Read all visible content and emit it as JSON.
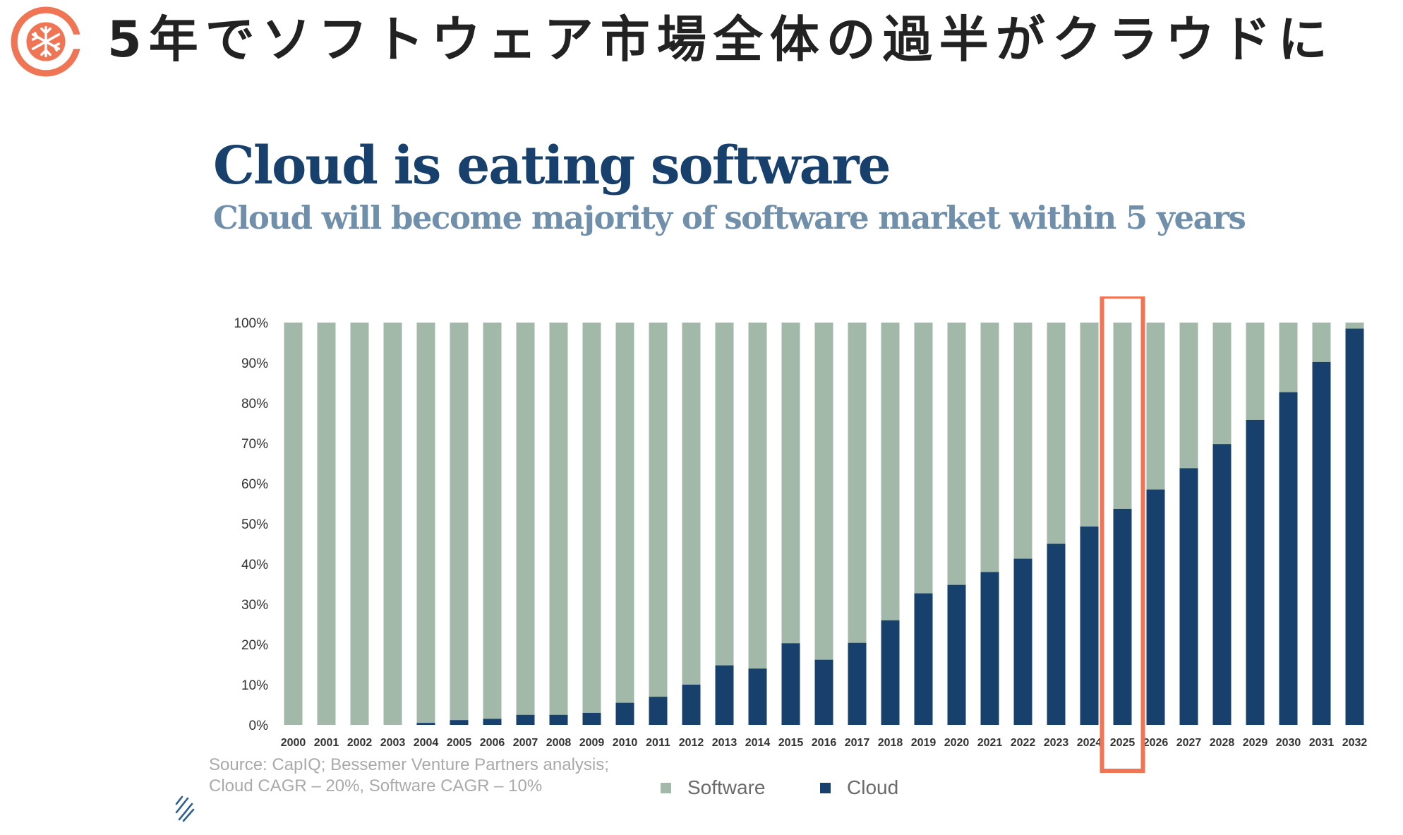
{
  "header": {
    "title": "5年でソフトウェア市場全体の過半がクラウドに",
    "logo_icon": "snowflake-c-logo",
    "accent_color": "#ef7554"
  },
  "chart_header": {
    "title": "Cloud is eating software",
    "subtitle": "Cloud will become majority of software market within 5 years"
  },
  "source": {
    "line1": "Source: CapIQ; Bessemer Venture Partners analysis;",
    "line2": "Cloud CAGR – 20%, Software CAGR – 10%"
  },
  "chart_data": {
    "type": "bar",
    "stacked": true,
    "categories": [
      "2000",
      "2001",
      "2002",
      "2003",
      "2004",
      "2005",
      "2006",
      "2007",
      "2008",
      "2009",
      "2010",
      "2011",
      "2012",
      "2013",
      "2014",
      "2015",
      "2016",
      "2017",
      "2018",
      "2019",
      "2020",
      "2021",
      "2022",
      "2023",
      "2024",
      "2025",
      "2026",
      "2027",
      "2028",
      "2029",
      "2030",
      "2031",
      "2032"
    ],
    "series": [
      {
        "name": "Cloud",
        "color": "#17406d",
        "values": [
          0,
          0,
          0,
          0,
          0.5,
          1.2,
          1.5,
          2.5,
          2.5,
          3,
          5.5,
          7,
          10,
          14.8,
          14,
          20.3,
          16.2,
          20.4,
          26,
          32.7,
          34.8,
          38,
          41.3,
          45,
          49.3,
          53.7,
          58.5,
          63.8,
          69.8,
          75.8,
          82.7,
          90.2,
          98.5
        ]
      },
      {
        "name": "Software",
        "color": "#a2b8a9",
        "values": [
          100,
          100,
          100,
          100,
          99.5,
          98.8,
          98.5,
          97.5,
          97.5,
          97,
          94.5,
          93,
          90,
          85.2,
          86,
          79.7,
          83.8,
          79.6,
          74,
          67.3,
          65.2,
          62,
          58.7,
          55,
          50.7,
          46.3,
          41.5,
          36.2,
          30.2,
          24.2,
          17.3,
          9.8,
          1.5
        ]
      }
    ],
    "yticks": [
      "0%",
      "10%",
      "20%",
      "30%",
      "40%",
      "50%",
      "60%",
      "70%",
      "80%",
      "90%",
      "100%"
    ],
    "ylim": [
      0,
      100
    ],
    "highlight_category": "2025",
    "highlight_color": "#ef7554",
    "legend": [
      "Software",
      "Cloud"
    ],
    "grid": false
  }
}
